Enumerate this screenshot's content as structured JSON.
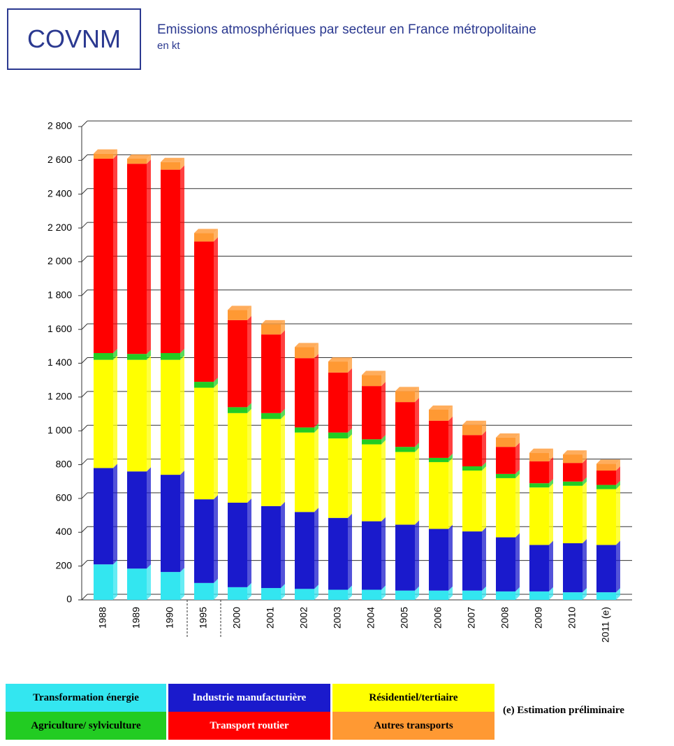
{
  "chart_data": {
    "type": "stacked_bar",
    "badge": "COVNM",
    "title": "Emissions atmosphériques par secteur en France métropolitaine",
    "subtitle": "en kt",
    "annotation": "(e) Estimation préliminaire",
    "categories": [
      "1988",
      "1989",
      "1990",
      "1995",
      "2000",
      "2001",
      "2002",
      "2003",
      "2004",
      "2005",
      "2006",
      "2007",
      "2008",
      "2009",
      "2010",
      "2011 (e)"
    ],
    "series": [
      {
        "name": "Transformation énergie",
        "color": "#33e6f0",
        "values": [
          210,
          185,
          165,
          100,
          75,
          70,
          65,
          60,
          60,
          55,
          55,
          55,
          50,
          50,
          45,
          45
        ]
      },
      {
        "name": "Industrie manufacturière",
        "color": "#1a1acc",
        "values": [
          570,
          575,
          575,
          495,
          500,
          485,
          455,
          425,
          405,
          390,
          365,
          350,
          320,
          275,
          290,
          280
        ]
      },
      {
        "name": "Résidentiel/tertiaire",
        "color": "#ffff00",
        "values": [
          640,
          660,
          680,
          660,
          530,
          515,
          470,
          470,
          455,
          430,
          395,
          360,
          350,
          340,
          340,
          330
        ]
      },
      {
        "name": "Agriculture/ sylviculture",
        "color": "#22cc22",
        "values": [
          40,
          35,
          40,
          35,
          35,
          35,
          30,
          35,
          30,
          30,
          25,
          25,
          25,
          25,
          25,
          25
        ]
      },
      {
        "name": "Transport routier",
        "color": "#ff0000",
        "values": [
          1150,
          1125,
          1085,
          830,
          515,
          465,
          410,
          355,
          315,
          265,
          220,
          185,
          160,
          130,
          110,
          85
        ]
      },
      {
        "name": "Autres transports",
        "color": "#ff9933",
        "values": [
          30,
          30,
          45,
          50,
          60,
          60,
          65,
          65,
          65,
          65,
          65,
          60,
          55,
          50,
          50,
          40
        ]
      }
    ],
    "ylim": [
      0,
      2800
    ],
    "yticks": [
      0,
      {
        "value": 200,
        "label": "200"
      },
      {
        "value": 400,
        "label": "400"
      },
      {
        "value": 600,
        "label": "600"
      },
      {
        "value": 800,
        "label": "800"
      },
      {
        "value": 1000,
        "label": "1 000"
      },
      {
        "value": 1200,
        "label": "1 200"
      },
      {
        "value": 1400,
        "label": "1 400"
      },
      {
        "value": 1600,
        "label": "1 600"
      },
      {
        "value": 1800,
        "label": "1 800"
      },
      {
        "value": 2000,
        "label": "2 000"
      },
      {
        "value": 2200,
        "label": "2 200"
      },
      {
        "value": 2400,
        "label": "2 400"
      },
      {
        "value": 2600,
        "label": "2 600"
      },
      {
        "value": 2800,
        "label": "2 800"
      }
    ],
    "grid": true
  }
}
